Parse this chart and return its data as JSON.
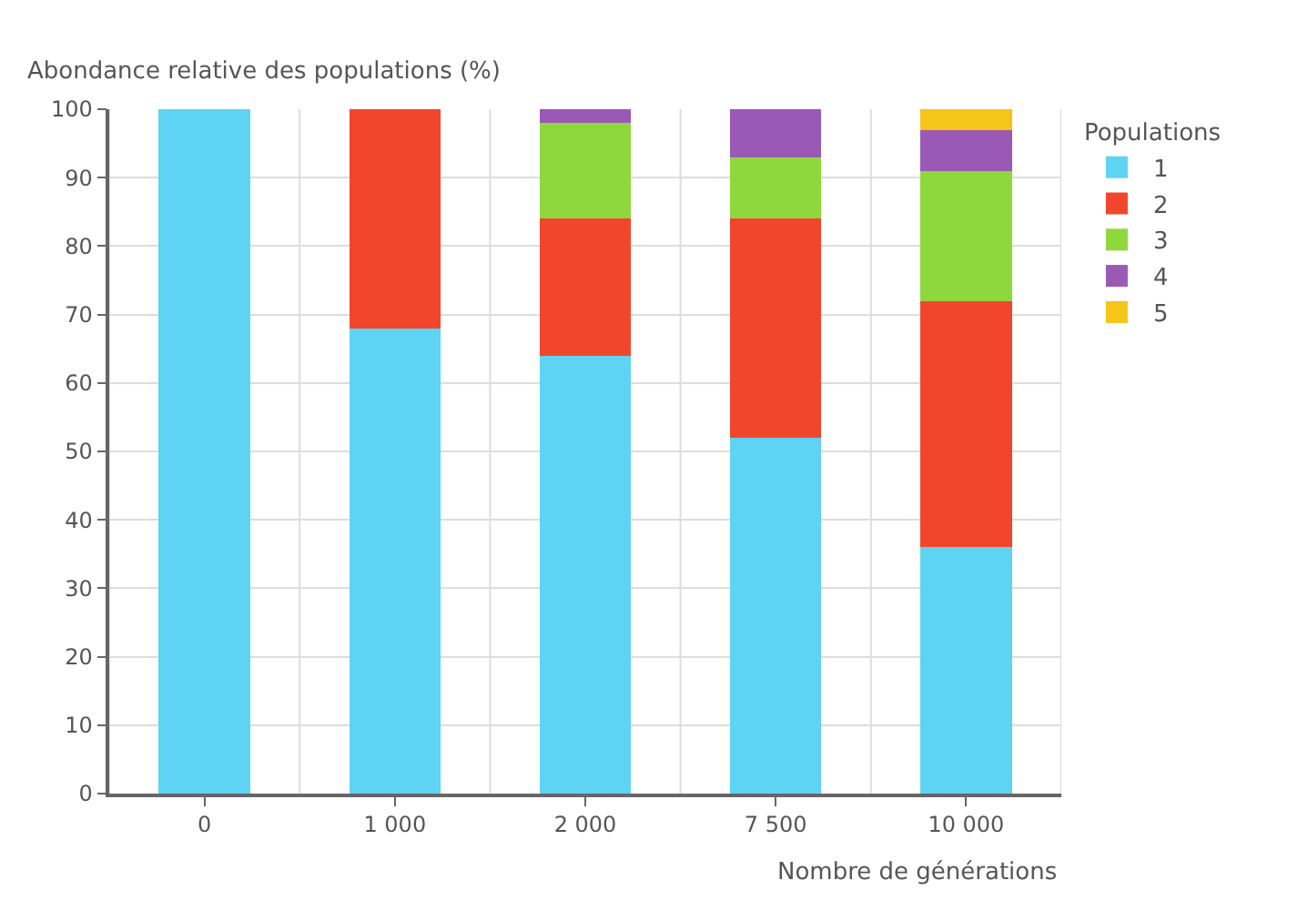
{
  "chart_data": {
    "type": "bar",
    "stacked": true,
    "ylabel": "Abondance relative des populations (%)",
    "xlabel": "Nombre de générations",
    "legend_title": "Populations",
    "legend": "top right",
    "grid": true,
    "categories": [
      "0",
      "1 000",
      "2 000",
      "7 500",
      "10 000"
    ],
    "ylim": [
      0,
      100
    ],
    "yticks": [
      0,
      10,
      20,
      30,
      40,
      50,
      60,
      70,
      80,
      90,
      100
    ],
    "series": [
      {
        "name": "1",
        "color": "#5fd3f3",
        "values": [
          100,
          68,
          64,
          52,
          36
        ]
      },
      {
        "name": "2",
        "color": "#f2462c",
        "values": [
          null,
          32,
          20,
          32,
          36
        ]
      },
      {
        "name": "3",
        "color": "#8ed83e",
        "values": [
          null,
          null,
          14,
          9,
          19
        ]
      },
      {
        "name": "4",
        "color": "#9b59b6",
        "values": [
          null,
          null,
          2,
          7,
          6
        ]
      },
      {
        "name": "5",
        "color": "#f5c518",
        "values": [
          null,
          null,
          null,
          null,
          3
        ]
      }
    ]
  }
}
